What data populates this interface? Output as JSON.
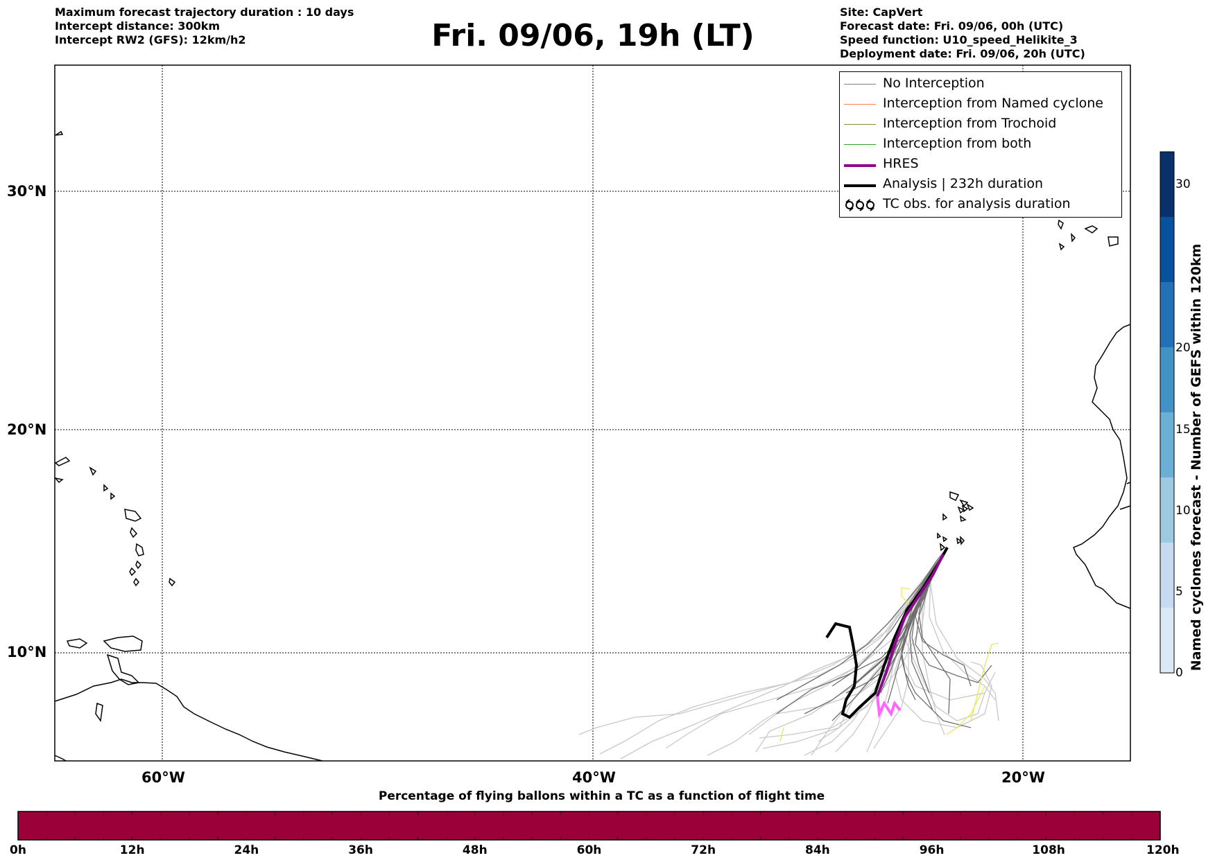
{
  "header": {
    "left_lines": [
      "Maximum forecast trajectory duration : 10 days",
      "Intercept distance: 300km",
      "Intercept RW2 (GFS):  12km/h2"
    ],
    "title": "Fri. 09/06, 19h (LT)",
    "right_lines": [
      "Site: CapVert",
      "Forecast date: Fri. 09/06, 00h (UTC)",
      "Speed function: U10_speed_Helikite_3",
      "Deployment date: Fri. 09/06, 20h (UTC)"
    ]
  },
  "map": {
    "lat_labels": [
      "30°N",
      "20°N",
      "10°N"
    ],
    "lon_labels": [
      "60°W",
      "40°W",
      "20°W"
    ],
    "extent": {
      "lon_min": -65,
      "lon_max": -15,
      "lat_min": 5,
      "lat_max": 35
    }
  },
  "legend": {
    "items": [
      {
        "label": "No Interception",
        "color": "#808080"
      },
      {
        "label": "Interception from Named cyclone",
        "color": "#ff7f50"
      },
      {
        "label": "Interception from Trochoid",
        "color": "#998833"
      },
      {
        "label": "Interception from both",
        "color": "#33a02c"
      },
      {
        "label": "HRES",
        "color": "#8b0a8b"
      },
      {
        "label": "Analysis | 232h duration",
        "color": "#000000"
      },
      {
        "label": "TC obs. for analysis duration",
        "color": "#000000",
        "icon": "cyclone-icon"
      }
    ]
  },
  "colorbar_right": {
    "title": "Named cyclones forecast - Number of GEFS within 120km",
    "ticks": [
      "0",
      "5",
      "10",
      "15",
      "20",
      "30"
    ],
    "colors": [
      "#dbe8f5",
      "#c6dbef",
      "#9ecae1",
      "#6baed6",
      "#4292c6",
      "#2171b5",
      "#08519c",
      "#08306b"
    ]
  },
  "colorbar_bottom": {
    "title": "Percentage of flying ballons within a TC as a function of flight time",
    "ticks": [
      "0h",
      "12h",
      "24h",
      "36h",
      "48h",
      "60h",
      "72h",
      "84h",
      "96h",
      "108h",
      "120h"
    ],
    "fill_color": "#9b0039"
  }
}
